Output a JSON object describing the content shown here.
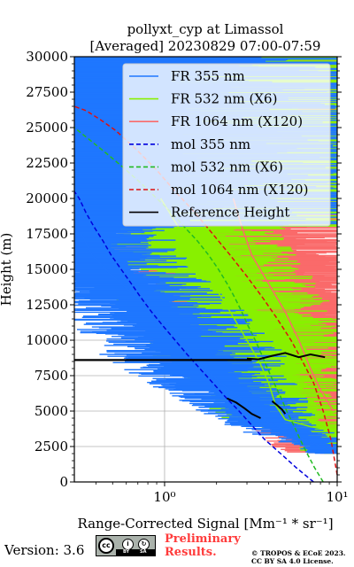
{
  "chart_data": {
    "type": "line",
    "title": [
      "pollyxt_cyp at Limassol",
      "[Averaged] 20230829 07:00-07:59"
    ],
    "xlabel": "Range-Corrected Signal [Mm⁻¹ * sr⁻¹]",
    "ylabel": "Height (m)",
    "x_scale": "log",
    "xlim": [
      0.3,
      10
    ],
    "ylim": [
      0,
      30000
    ],
    "grid": true,
    "legend_position": "top-right",
    "y_ticks": [
      {
        "value": 0,
        "label": "0"
      },
      {
        "value": 2500,
        "label": "2500"
      },
      {
        "value": 5000,
        "label": "5000"
      },
      {
        "value": 7500,
        "label": "7500"
      },
      {
        "value": 10000,
        "label": "10000"
      },
      {
        "value": 12500,
        "label": "12500"
      },
      {
        "value": 15000,
        "label": "15000"
      },
      {
        "value": 17500,
        "label": "17500"
      },
      {
        "value": 20000,
        "label": "20000"
      },
      {
        "value": 22500,
        "label": "22500"
      },
      {
        "value": 25000,
        "label": "25000"
      },
      {
        "value": 27500,
        "label": "27500"
      },
      {
        "value": 30000,
        "label": "30000"
      }
    ],
    "x_ticks": [
      {
        "value": 1,
        "label": "10⁰"
      },
      {
        "value": 10,
        "label": "10¹"
      }
    ],
    "series": [
      {
        "name": "FR 355 nm",
        "color": "#1f77ff",
        "style": "solid",
        "points": [
          [
            10,
            2000
          ],
          [
            6,
            3200
          ],
          [
            4,
            4200
          ],
          [
            3,
            5600
          ],
          [
            2.3,
            6600
          ],
          [
            1.7,
            8000
          ],
          [
            1.5,
            8800
          ],
          [
            1.2,
            10000
          ],
          [
            0.95,
            11500
          ],
          [
            0.7,
            13000
          ],
          [
            0.5,
            14500
          ],
          [
            0.38,
            16000
          ],
          [
            0.33,
            17500
          ]
        ]
      },
      {
        "name": "FR 532 nm (X6)",
        "color": "#88f000",
        "style": "solid",
        "points": [
          [
            10,
            3600
          ],
          [
            7,
            3900
          ],
          [
            5,
            4400
          ],
          [
            4.4,
            5400
          ],
          [
            4,
            7000
          ],
          [
            3.6,
            8300
          ],
          [
            3,
            10000
          ],
          [
            2.4,
            12000
          ],
          [
            1.9,
            14000
          ],
          [
            1.5,
            16000
          ],
          [
            1.2,
            18000
          ],
          [
            0.95,
            20000
          ]
        ]
      },
      {
        "name": "FR 1064 nm (X120)",
        "color": "#fa6a6a",
        "style": "solid",
        "points": [
          [
            9.5,
            5000
          ],
          [
            8,
            6500
          ],
          [
            7,
            8000
          ],
          [
            6,
            10000
          ],
          [
            5,
            12000
          ],
          [
            4,
            14000
          ],
          [
            3.2,
            16000
          ],
          [
            2.8,
            18000
          ],
          [
            2.5,
            20000
          ]
        ]
      },
      {
        "name": "mol 355 nm",
        "color": "#0000dd",
        "style": "dashed",
        "points": [
          [
            7.3,
            0
          ],
          [
            5.8,
            1000
          ],
          [
            4.7,
            2000
          ],
          [
            3.8,
            3000
          ],
          [
            3.2,
            4000
          ],
          [
            2.7,
            5000
          ],
          [
            2.25,
            6000
          ],
          [
            1.9,
            7000
          ],
          [
            1.6,
            8000
          ],
          [
            1.35,
            9000
          ],
          [
            1.15,
            10000
          ],
          [
            0.98,
            11000
          ],
          [
            0.84,
            12000
          ],
          [
            0.73,
            13000
          ],
          [
            0.64,
            14000
          ],
          [
            0.56,
            15000
          ],
          [
            0.49,
            16000
          ],
          [
            0.44,
            17000
          ],
          [
            0.39,
            18000
          ],
          [
            0.35,
            19000
          ],
          [
            0.32,
            20000
          ],
          [
            0.3,
            20500
          ]
        ]
      },
      {
        "name": "mol 532 nm (X6)",
        "color": "#22bb22",
        "style": "dashed",
        "points": [
          [
            8.3,
            0
          ],
          [
            7.4,
            1000
          ],
          [
            6.7,
            2000
          ],
          [
            6.1,
            3000
          ],
          [
            5.6,
            4000
          ],
          [
            5.1,
            5000
          ],
          [
            4.7,
            6000
          ],
          [
            4.3,
            7000
          ],
          [
            3.95,
            8000
          ],
          [
            3.65,
            9000
          ],
          [
            3.35,
            10000
          ],
          [
            3.05,
            11000
          ],
          [
            2.8,
            12000
          ],
          [
            2.55,
            13000
          ],
          [
            2.3,
            14000
          ],
          [
            2.05,
            15000
          ],
          [
            1.8,
            16000
          ],
          [
            1.55,
            17000
          ],
          [
            1.3,
            18000
          ],
          [
            1.1,
            19000
          ],
          [
            0.9,
            20000
          ],
          [
            0.74,
            21000
          ],
          [
            0.6,
            22000
          ],
          [
            0.48,
            23000
          ],
          [
            0.38,
            24000
          ],
          [
            0.3,
            25000
          ]
        ]
      },
      {
        "name": "mol 1064 nm (X120)",
        "color": "#dd1111",
        "style": "dashed",
        "points": [
          [
            10,
            500
          ],
          [
            9.2,
            3000
          ],
          [
            8.3,
            5000
          ],
          [
            7.3,
            7000
          ],
          [
            6.3,
            8500
          ],
          [
            5.4,
            10000
          ],
          [
            4.5,
            11500
          ],
          [
            3.7,
            13000
          ],
          [
            3.0,
            14500
          ],
          [
            2.4,
            16000
          ],
          [
            1.9,
            17500
          ],
          [
            1.5,
            19000
          ],
          [
            1.15,
            20500
          ],
          [
            0.9,
            22000
          ],
          [
            0.68,
            23500
          ],
          [
            0.52,
            24800
          ],
          [
            0.42,
            25600
          ],
          [
            0.35,
            26200
          ],
          [
            0.3,
            26500
          ]
        ]
      },
      {
        "name": "Reference Height",
        "color": "#000000",
        "style": "solid",
        "points": []
      }
    ]
  },
  "footer": {
    "version": "Version: 3.6",
    "license_badge": "cc-by-sa-icon",
    "license_strip": [
      "BY",
      "SA"
    ],
    "preliminary_line1": "Preliminary",
    "preliminary_line2": "Results.",
    "copyright_line1": "© TROPOS & ECoE 2023.",
    "copyright_line2": "CC BY SA 4.0 License."
  }
}
